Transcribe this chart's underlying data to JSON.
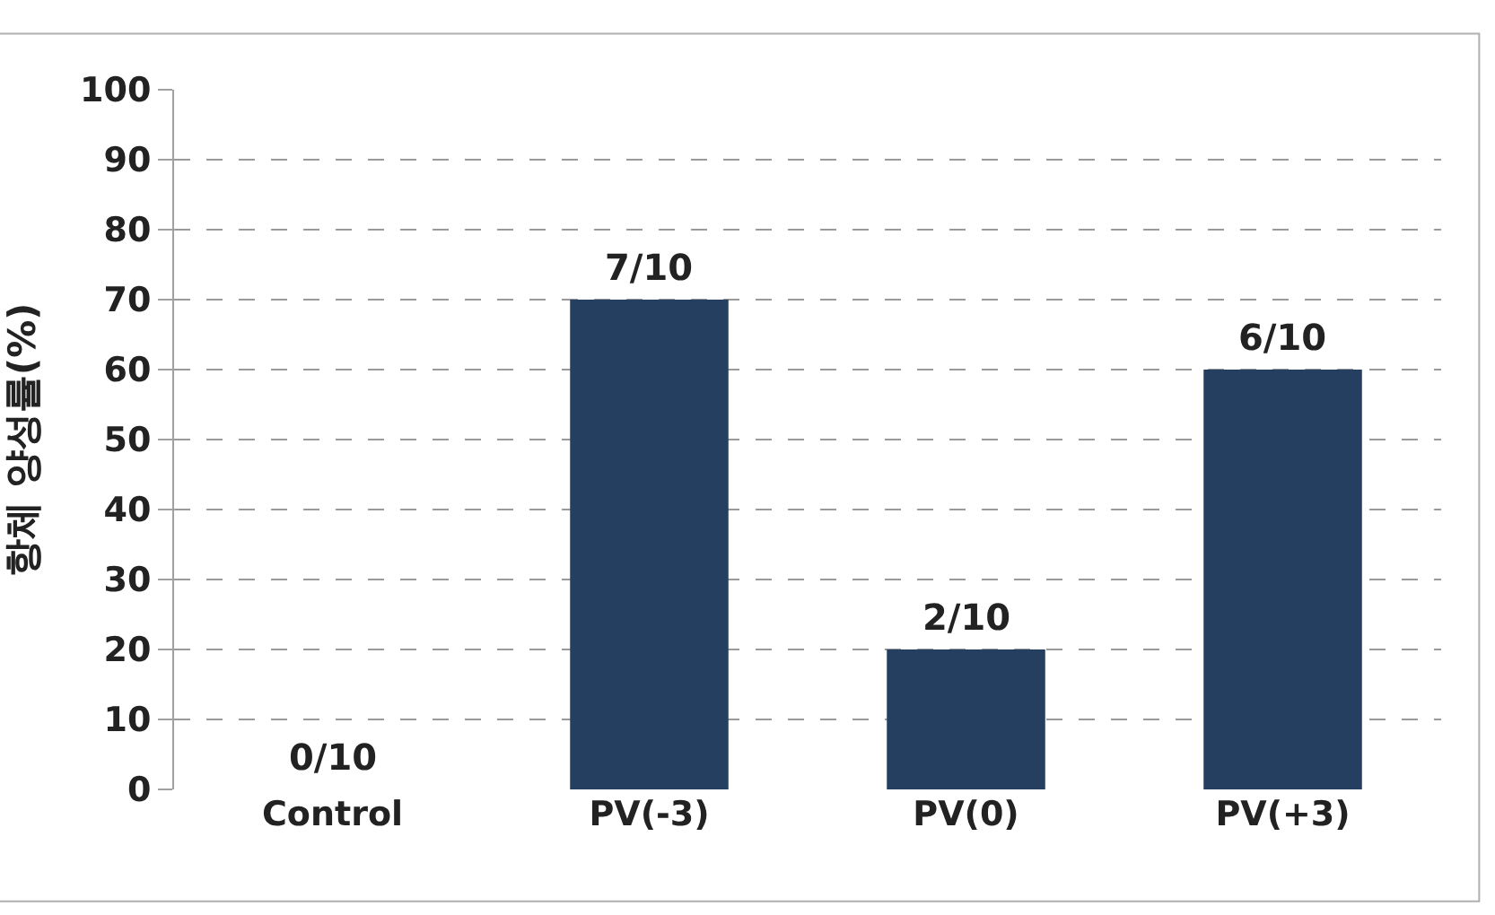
{
  "chart_data": {
    "type": "bar",
    "ylabel": "항체 양성률(%)",
    "categories": [
      "Control",
      "PV(-3)",
      "PV(0)",
      "PV(+3)"
    ],
    "values": [
      0,
      70,
      20,
      60
    ],
    "color": "#243f60",
    "annotations": [
      {
        "text": "0/10",
        "x": "Control",
        "y": 0
      },
      {
        "text": "7/10",
        "x": "PV(-3)",
        "y": 70
      },
      {
        "text": "2/10",
        "x": "PV(0)",
        "y": 20
      },
      {
        "text": "6/10",
        "x": "PV(+3)",
        "y": 60
      }
    ],
    "ylim": [
      0,
      100
    ],
    "yticks": [
      0,
      10,
      20,
      30,
      40,
      50,
      60,
      70,
      80,
      90,
      100
    ],
    "grid": "y"
  }
}
